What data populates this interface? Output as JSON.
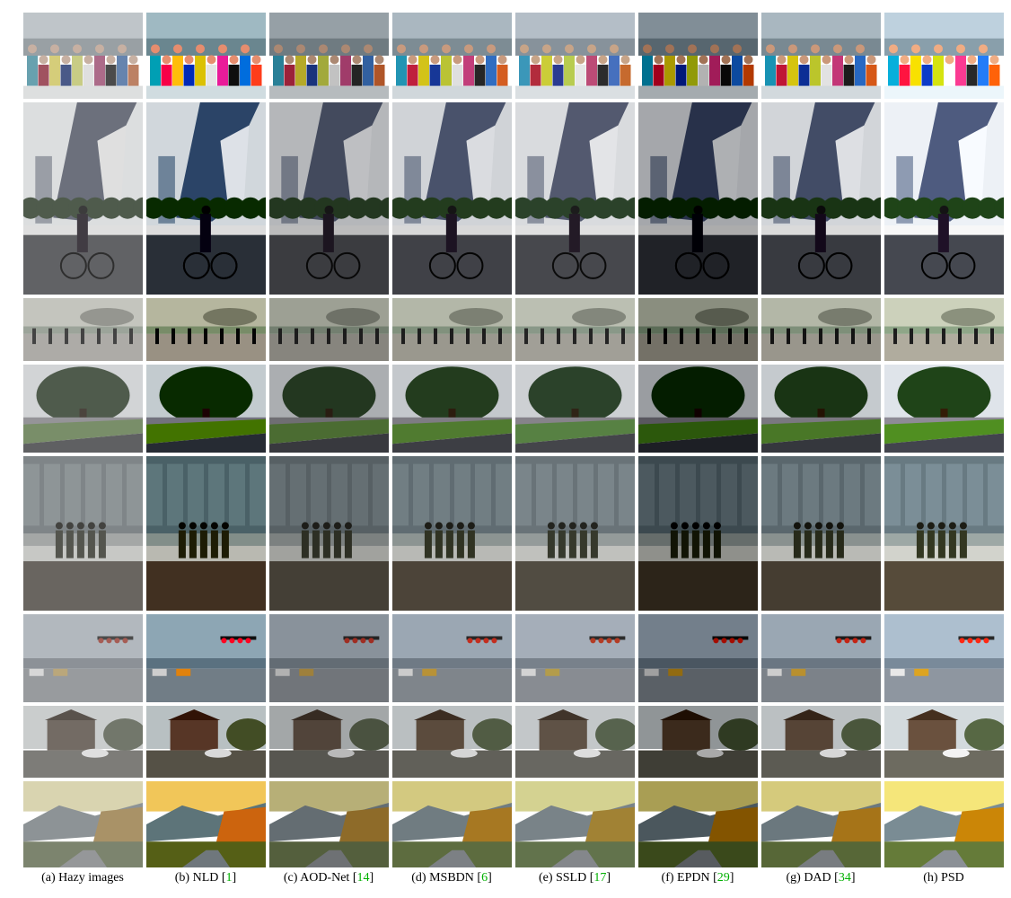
{
  "figure": {
    "columns": [
      {
        "label": "(a) Hazy images",
        "cite": ""
      },
      {
        "label": "(b) NLD",
        "cite": "1"
      },
      {
        "label": "(c) AOD-Net",
        "cite": "14"
      },
      {
        "label": "(d) MSBDN",
        "cite": "6"
      },
      {
        "label": "(e) SSLD",
        "cite": "17"
      },
      {
        "label": "(f) EPDN",
        "cite": "29"
      },
      {
        "label": "(g) DAD",
        "cite": "34"
      },
      {
        "label": "(h) PSD",
        "cite": ""
      }
    ],
    "rows": [
      {
        "scene": "group-of-people-on-boat"
      },
      {
        "scene": "cyclist-near-towers"
      },
      {
        "scene": "plaza-with-pedestrians"
      },
      {
        "scene": "large-tree-by-road"
      },
      {
        "scene": "soldiers-walking-by-building"
      },
      {
        "scene": "traffic-lights-street"
      },
      {
        "scene": "house-with-car"
      },
      {
        "scene": "autumn-mountain-road"
      }
    ]
  }
}
